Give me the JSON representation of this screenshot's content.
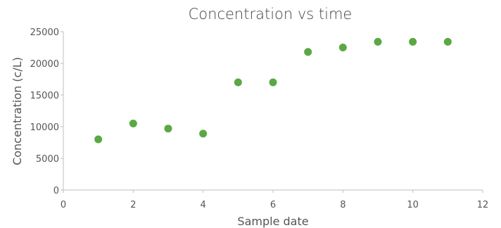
{
  "chart_data": {
    "type": "scatter",
    "title": "Concentration vs time",
    "xlabel": "Sample date",
    "ylabel": "Concentration (c/L)",
    "xlim": [
      0,
      12
    ],
    "ylim": [
      0,
      25000
    ],
    "xticks": [
      0,
      2,
      4,
      6,
      8,
      10,
      12
    ],
    "yticks": [
      0,
      5000,
      10000,
      15000,
      20000,
      25000
    ],
    "grid": false,
    "legend": "none",
    "marker_color": "#5aa843",
    "series": [
      {
        "x": [
          1,
          2,
          3,
          4,
          5,
          6,
          7,
          8,
          9,
          10,
          11
        ],
        "y": [
          8000,
          10500,
          9700,
          8900,
          17000,
          17000,
          21800,
          22500,
          23400,
          23400,
          23400
        ]
      }
    ]
  }
}
